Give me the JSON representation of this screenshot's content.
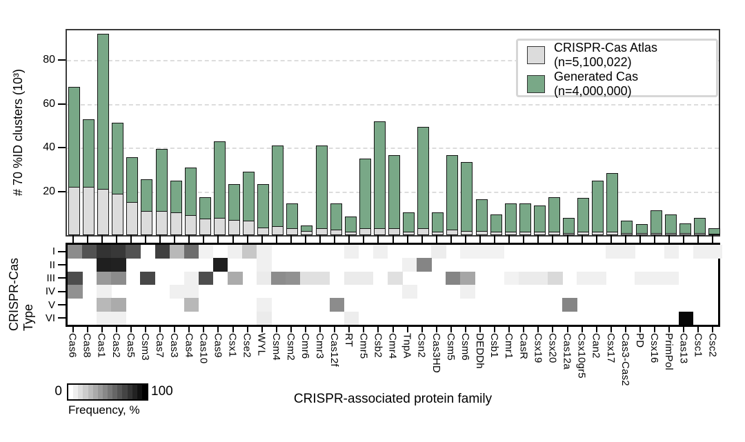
{
  "figure": {
    "y_axis": {
      "label": "# 70 %ID clusters (10³)",
      "ticks": [
        20,
        40,
        60,
        80
      ]
    },
    "x_axis": {
      "title": "CRISPR-associated protein family"
    },
    "heatmap_axis": {
      "label": "CRISPR-Cas Type",
      "rows": [
        "I",
        "II",
        "III",
        "IV",
        "V",
        "VI"
      ]
    },
    "legend": {
      "atlas": {
        "label": "CRISPR-Cas Atlas (n=5,100,022)",
        "color": "#dcdcdc"
      },
      "generated": {
        "label": "Generated Cas (n=4,000,000)",
        "color": "#79a887"
      }
    },
    "colorbar": {
      "min": "0",
      "max": "100",
      "label": "Frequency, %"
    }
  },
  "chart_data": [
    {
      "type": "bar",
      "stacked": true,
      "title": "",
      "ylabel": "# 70 %ID clusters (10³)",
      "ylim": [
        0,
        97
      ],
      "yticks": [
        20,
        40,
        60,
        80
      ],
      "grid": "dashed-horizontal",
      "legend_position": "top-right",
      "categories": [
        "Cas6",
        "Cas8",
        "Cas1",
        "Cas2",
        "Cas5",
        "Csm3",
        "Cas7",
        "Cas3",
        "Cas4",
        "Cas10",
        "Cas9",
        "Csx1",
        "Cse2",
        "WYL",
        "Csm4",
        "Csm2",
        "Cmr6",
        "Cmr3",
        "Cas12f",
        "RT",
        "Cmr5",
        "Csb2",
        "Cmr4",
        "TnpA",
        "Csn2",
        "Cas3HD",
        "Csm5",
        "Csm6",
        "DEDDh",
        "Csb1",
        "Cmr1",
        "CasR",
        "Csx19",
        "Csx20",
        "Cas12a",
        "Csx10gr5",
        "Can2",
        "Csx17",
        "Cas3-Cas2",
        "PD",
        "Csx16",
        "PrimPol",
        "Cas13",
        "Csc1",
        "Csc2"
      ],
      "series": [
        {
          "name": "CRISPR-Cas Atlas (n=5,100,022)",
          "color": "#dcdcdc",
          "values": [
            22,
            22,
            21,
            19,
            15,
            11,
            11,
            10.5,
            9,
            7.5,
            8,
            7,
            6.5,
            3.5,
            4,
            3,
            2,
            3,
            2.5,
            1.5,
            3,
            3,
            3,
            1.5,
            3,
            1.5,
            2.5,
            2,
            2,
            1.5,
            1.5,
            1.5,
            1.5,
            1.5,
            1,
            1.5,
            1.5,
            1.5,
            1,
            1,
            1,
            1,
            1,
            1,
            0.5
          ]
        },
        {
          "name": "Generated Cas (n=4,000,000)",
          "color": "#79a887",
          "values": [
            46,
            31,
            71,
            32.5,
            20.5,
            14.5,
            28.5,
            14.5,
            22,
            10,
            35,
            16.5,
            22.5,
            20,
            37,
            11.5,
            2.5,
            38,
            12,
            7,
            32,
            49,
            33.5,
            9,
            46.5,
            9,
            34,
            31.5,
            14.5,
            8,
            13,
            13,
            12,
            16,
            7,
            15.5,
            23.5,
            27,
            5.5,
            4,
            10.5,
            8.5,
            4.5,
            7,
            2.5
          ]
        }
      ]
    },
    {
      "type": "heatmap",
      "row_axis_label": "CRISPR-Cas Type",
      "xlabel": "CRISPR-associated protein family",
      "rows": [
        "I",
        "II",
        "III",
        "IV",
        "V",
        "VI"
      ],
      "columns": [
        "Cas6",
        "Cas8",
        "Cas1",
        "Cas2",
        "Cas5",
        "Csm3",
        "Cas7",
        "Cas3",
        "Cas4",
        "Cas10",
        "Cas9",
        "Csx1",
        "Cse2",
        "WYL",
        "Csm4",
        "Csm2",
        "Cmr6",
        "Cmr3",
        "Cas12f",
        "RT",
        "Cmr5",
        "Csb2",
        "Cmr4",
        "TnpA",
        "Csn2",
        "Cas3HD",
        "Csm5",
        "Csm6",
        "DEDDh",
        "Csb1",
        "Cmr1",
        "CasR",
        "Csx19",
        "Csx20",
        "Cas12a",
        "Csx10gr5",
        "Can2",
        "Csx17",
        "Cas3-Cas2",
        "PD",
        "Csx16",
        "PrimPol",
        "Cas13",
        "Csc1",
        "Csc2"
      ],
      "colorbar": {
        "min": 0,
        "max": 100,
        "label": "Frequency, %",
        "scale": "white-to-black"
      },
      "values": [
        [
          45,
          68,
          80,
          78,
          68,
          0,
          75,
          28,
          57,
          5,
          0,
          6,
          22,
          6,
          0,
          0,
          0,
          0,
          0,
          6,
          0,
          6,
          0,
          0,
          0,
          7,
          0,
          5,
          5,
          5,
          0,
          0,
          0,
          0,
          0,
          0,
          0,
          6,
          6,
          0,
          0,
          6,
          0,
          6,
          6
        ],
        [
          0,
          0,
          88,
          87,
          0,
          0,
          0,
          0,
          0,
          0,
          88,
          0,
          0,
          6,
          0,
          0,
          0,
          0,
          0,
          0,
          0,
          0,
          0,
          6,
          48,
          0,
          0,
          0,
          0,
          0,
          0,
          0,
          0,
          0,
          0,
          0,
          0,
          0,
          0,
          0,
          0,
          0,
          0,
          0,
          0
        ],
        [
          70,
          0,
          40,
          45,
          0,
          72,
          0,
          0,
          6,
          70,
          0,
          33,
          0,
          8,
          45,
          43,
          12,
          12,
          0,
          8,
          8,
          0,
          12,
          0,
          0,
          0,
          48,
          35,
          0,
          0,
          5,
          8,
          8,
          15,
          0,
          6,
          6,
          0,
          0,
          6,
          6,
          6,
          0,
          0,
          0
        ],
        [
          43,
          0,
          6,
          0,
          0,
          0,
          0,
          6,
          6,
          0,
          0,
          0,
          0,
          0,
          0,
          0,
          0,
          0,
          0,
          0,
          0,
          0,
          0,
          6,
          0,
          0,
          0,
          6,
          0,
          0,
          0,
          0,
          0,
          0,
          0,
          0,
          0,
          0,
          0,
          0,
          0,
          0,
          0,
          0,
          0
        ],
        [
          0,
          0,
          28,
          33,
          0,
          0,
          0,
          0,
          28,
          0,
          0,
          0,
          0,
          6,
          0,
          0,
          0,
          0,
          45,
          0,
          0,
          0,
          0,
          0,
          0,
          0,
          0,
          0,
          0,
          0,
          0,
          0,
          0,
          0,
          48,
          0,
          0,
          0,
          0,
          0,
          0,
          0,
          0,
          0,
          0
        ],
        [
          0,
          0,
          6,
          6,
          0,
          0,
          0,
          0,
          0,
          0,
          0,
          0,
          0,
          8,
          0,
          0,
          0,
          0,
          0,
          7,
          0,
          0,
          0,
          0,
          0,
          0,
          0,
          0,
          0,
          0,
          0,
          0,
          0,
          0,
          0,
          0,
          0,
          0,
          0,
          0,
          0,
          0,
          97,
          0,
          0
        ]
      ]
    }
  ]
}
